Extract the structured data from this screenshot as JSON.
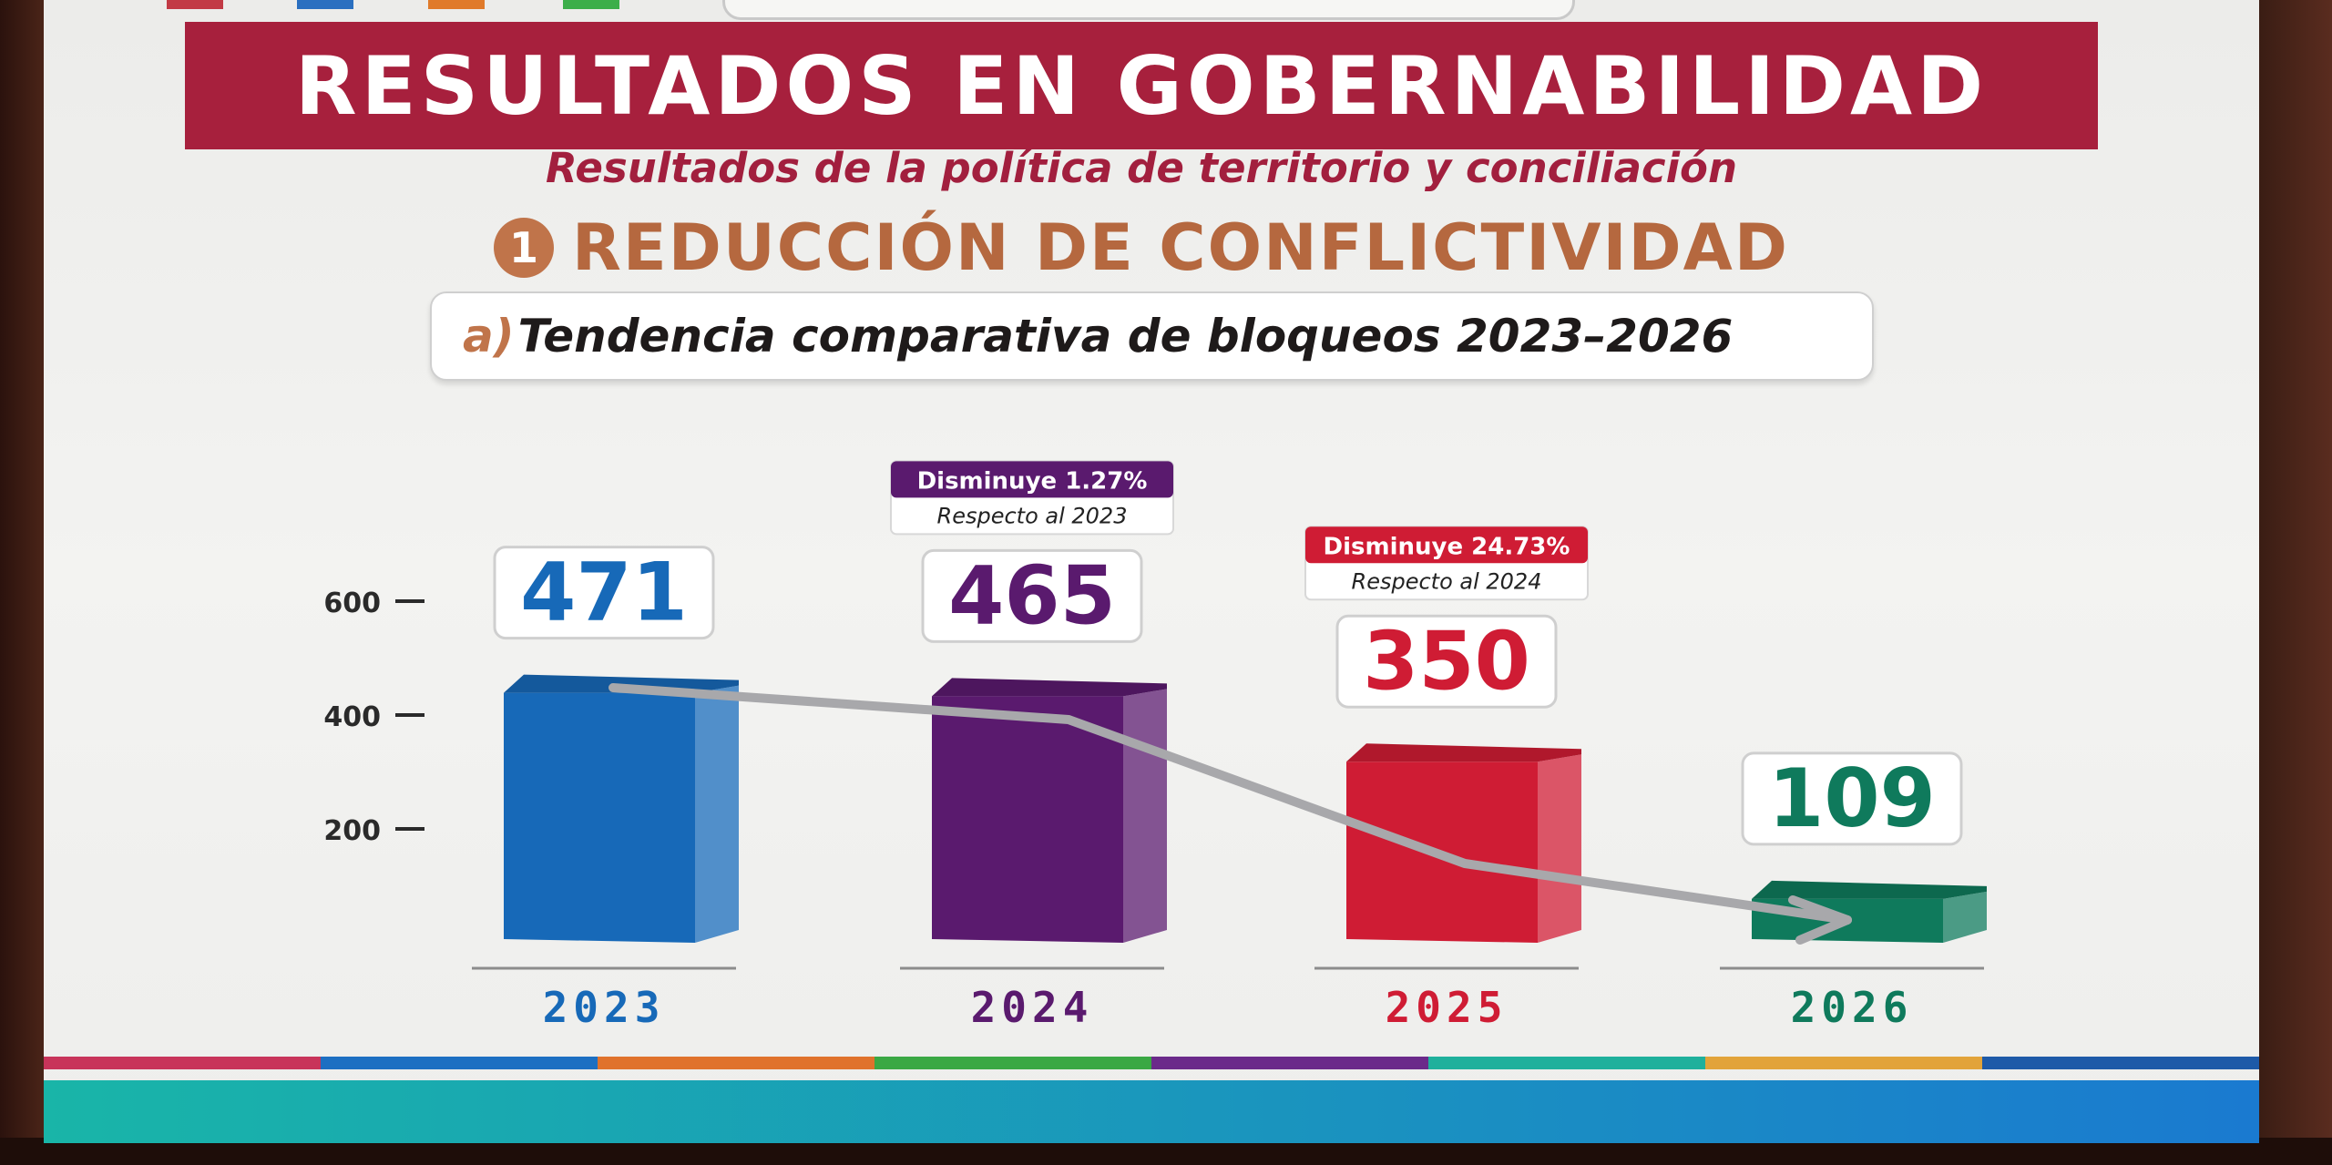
{
  "header": {
    "title": "RESULTADOS EN GOBERNABILIDAD",
    "subtitle": "Resultados de la política de territorio y conciliación",
    "section_number": "1",
    "section_title": "REDUCCIÓN DE CONFLICTIVIDAD",
    "subheading_letter": "a)",
    "subheading_text": "Tendencia comparativa de bloqueos 2023–2026"
  },
  "colors": {
    "title_bg": "#a7203d",
    "subtitle": "#a21f3e",
    "section": "#b5683f",
    "bar_2023": "#1769b8",
    "bar_2024": "#5a1a6e",
    "bar_2025": "#cf1c34",
    "bar_2026": "#0f7a5c",
    "trend_line": "#a8a8ab"
  },
  "chart_data": {
    "type": "bar",
    "categories": [
      "2023",
      "2024",
      "2025",
      "2026"
    ],
    "values": [
      471,
      465,
      350,
      109
    ],
    "value_labels": [
      "471",
      "465",
      "350",
      "109"
    ],
    "yticks": [
      200,
      400,
      600
    ],
    "ylim": [
      0,
      600
    ],
    "annotations": [
      {
        "category": "2024",
        "title": "Disminuye 1.27%",
        "subtitle": "Respecto al 2023"
      },
      {
        "category": "2025",
        "title": "Disminuye 24.73%",
        "subtitle": "Respecto al 2024"
      }
    ],
    "trend_arrow": true,
    "bar_style": "3d",
    "grid": false
  },
  "stripe_colors": [
    "#c8345a",
    "#1c6fc2",
    "#e0722c",
    "#3aa844",
    "#6b2a8a",
    "#1fb09c",
    "#e2a33a",
    "#1e5aa8"
  ]
}
